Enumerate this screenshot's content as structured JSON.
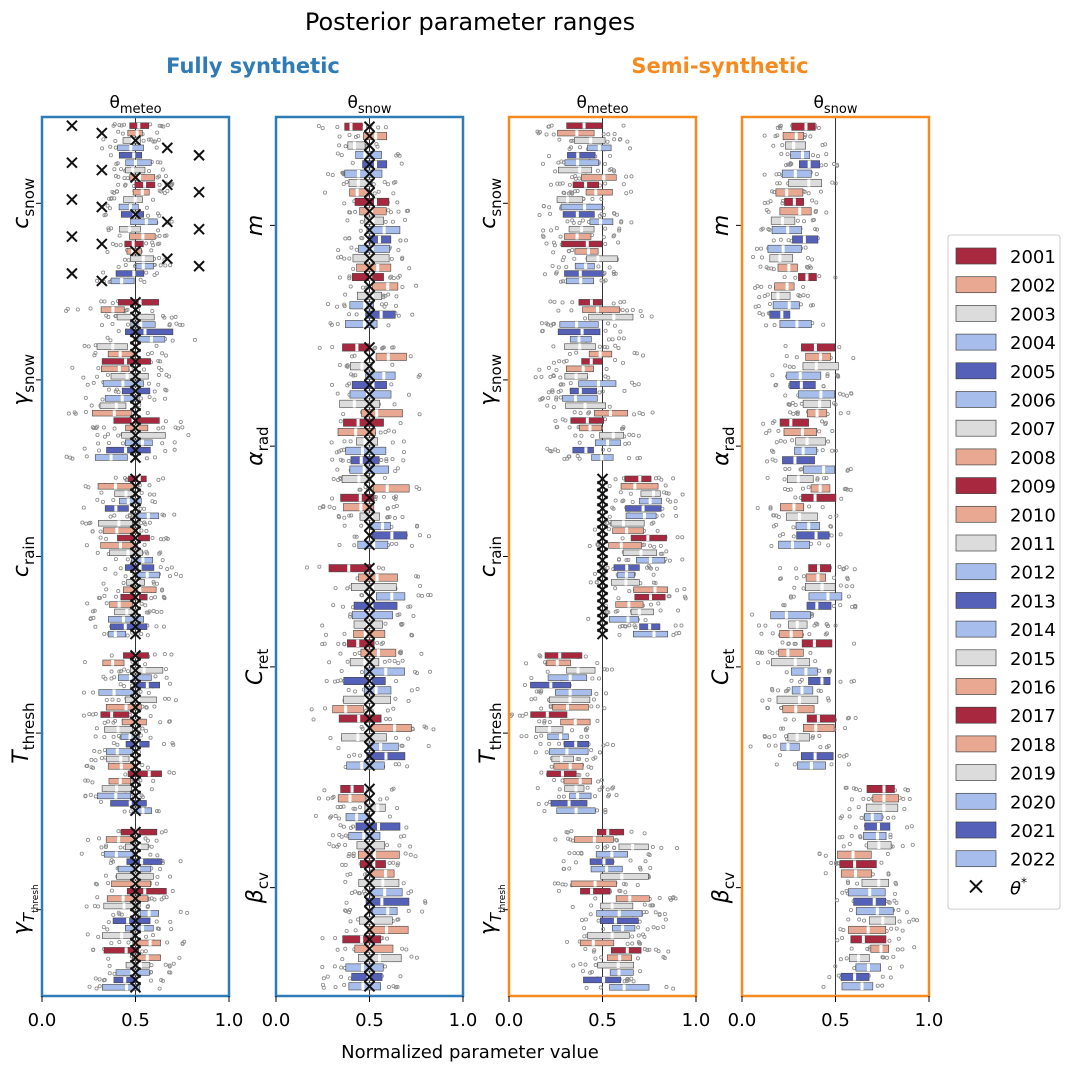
{
  "figure": {
    "title": "Posterior parameter ranges",
    "xlabel": "Normalized parameter value",
    "group_left": "Fully synthetic",
    "group_right": "Semi-synthetic",
    "group_left_color": "#2e7bb6",
    "group_right_color": "#f58a1f"
  },
  "colors": {
    "2001": "#a8283f",
    "2002": "#e8a892",
    "2003": "#dcdcdc",
    "2004": "#a7bdec",
    "2005": "#5561b9",
    "2006": "#a7bdec",
    "2007": "#dcdcdc",
    "2008": "#e8a892",
    "2009": "#a8283f",
    "2010": "#e8a892",
    "2011": "#dcdcdc",
    "2012": "#a7bdec",
    "2013": "#5561b9",
    "2014": "#a7bdec",
    "2015": "#dcdcdc",
    "2016": "#e8a892",
    "2017": "#a8283f",
    "2018": "#e8a892",
    "2019": "#dcdcdc",
    "2020": "#a7bdec",
    "2021": "#5561b9",
    "2022": "#a7bdec"
  },
  "chart_data": [
    {
      "type": "boxplot",
      "title": "θ_meteo",
      "group": "Fully synthetic",
      "xlabel": "Normalized parameter value",
      "xlim": [
        0,
        1
      ],
      "xticks": [
        0.0,
        0.5,
        1.0
      ],
      "reference_line": 0.5,
      "years": [
        2001,
        2002,
        2003,
        2004,
        2005,
        2006,
        2007,
        2008,
        2009,
        2010,
        2011,
        2012,
        2013,
        2014,
        2015,
        2016,
        2017,
        2018,
        2019,
        2020,
        2021,
        2022
      ],
      "parameters": [
        {
          "label": "c",
          "sub": "snow",
          "center": 0.5,
          "spread": 0.16,
          "truth": [
            0.16,
            0.32,
            0.5,
            0.67,
            0.84,
            0.16,
            0.32,
            0.5,
            0.67,
            0.84,
            0.16,
            0.32,
            0.5,
            0.67,
            0.84,
            0.16,
            0.32,
            0.5,
            0.67,
            0.84,
            0.16,
            0.32
          ]
        },
        {
          "label": "γ",
          "sub": "snow",
          "center": 0.48,
          "spread": 0.26,
          "truth": 0.5
        },
        {
          "label": "c",
          "sub": "rain",
          "center": 0.48,
          "spread": 0.2,
          "truth": 0.5
        },
        {
          "label": "T",
          "sub": "thresh",
          "center": 0.47,
          "spread": 0.2,
          "truth": 0.5
        },
        {
          "label": "γ",
          "sub": "T_thresh",
          "center": 0.48,
          "spread": 0.22,
          "truth": 0.5
        }
      ]
    },
    {
      "type": "boxplot",
      "title": "θ_snow",
      "group": "Fully synthetic",
      "xlabel": "Normalized parameter value",
      "xlim": [
        0,
        1
      ],
      "xticks": [
        0.0,
        0.5,
        1.0
      ],
      "reference_line": 0.5,
      "years": [
        2001,
        2002,
        2003,
        2004,
        2005,
        2006,
        2007,
        2008,
        2009,
        2010,
        2011,
        2012,
        2013,
        2014,
        2015,
        2016,
        2017,
        2018,
        2019,
        2020,
        2021,
        2022
      ],
      "parameters": [
        {
          "label": "m",
          "sub": "",
          "center": 0.5,
          "spread": 0.2,
          "truth": 0.5
        },
        {
          "label": "α",
          "sub": "rad",
          "center": 0.52,
          "spread": 0.22,
          "truth": 0.5
        },
        {
          "label": "C",
          "sub": "ret",
          "center": 0.5,
          "spread": 0.26,
          "truth": 0.5
        },
        {
          "label": "β",
          "sub": "cv",
          "center": 0.5,
          "spread": 0.24,
          "truth": 0.5
        }
      ]
    },
    {
      "type": "boxplot",
      "title": "θ_meteo",
      "group": "Semi-synthetic",
      "xlabel": "Normalized parameter value",
      "xlim": [
        0,
        1
      ],
      "xticks": [
        0.0,
        0.5,
        1.0
      ],
      "reference_line": 0.5,
      "years": [
        2001,
        2002,
        2003,
        2004,
        2005,
        2006,
        2007,
        2008,
        2009,
        2010,
        2011,
        2012,
        2013,
        2014,
        2015,
        2016,
        2017,
        2018,
        2019,
        2020,
        2021,
        2022
      ],
      "parameters": [
        {
          "label": "c",
          "sub": "snow",
          "center": 0.42,
          "spread": 0.22
        },
        {
          "label": "γ",
          "sub": "snow",
          "center": 0.45,
          "spread": 0.24
        },
        {
          "label": "c",
          "sub": "rain",
          "center": 0.7,
          "spread": 0.2,
          "truth": 0.5
        },
        {
          "label": "T",
          "sub": "thresh",
          "center": 0.3,
          "spread": 0.22
        },
        {
          "label": "γ",
          "sub": "T_thresh",
          "center": 0.55,
          "spread": 0.26
        }
      ]
    },
    {
      "type": "boxplot",
      "title": "θ_snow",
      "group": "Semi-synthetic",
      "xlabel": "Normalized parameter value",
      "xlim": [
        0,
        1
      ],
      "xticks": [
        0.0,
        0.5,
        1.0
      ],
      "reference_line": 0.5,
      "years": [
        2001,
        2002,
        2003,
        2004,
        2005,
        2006,
        2007,
        2008,
        2009,
        2010,
        2011,
        2012,
        2013,
        2014,
        2015,
        2016,
        2017,
        2018,
        2019,
        2020,
        2021,
        2022
      ],
      "parameters": [
        {
          "label": "m",
          "sub": "",
          "center": 0.28,
          "spread": 0.18
        },
        {
          "label": "α",
          "sub": "rad",
          "center": 0.35,
          "spread": 0.2
        },
        {
          "label": "C",
          "sub": "ret",
          "center": 0.35,
          "spread": 0.22
        },
        {
          "label": "β",
          "sub": "cv",
          "center": 0.68,
          "spread": 0.2
        }
      ]
    }
  ],
  "legend": {
    "placement": "right",
    "entries": [
      "2001",
      "2002",
      "2003",
      "2004",
      "2005",
      "2006",
      "2007",
      "2008",
      "2009",
      "2010",
      "2011",
      "2012",
      "2013",
      "2014",
      "2015",
      "2016",
      "2017",
      "2018",
      "2019",
      "2020",
      "2021",
      "2022"
    ],
    "truth_label": "θ",
    "truth_sup": "*"
  }
}
